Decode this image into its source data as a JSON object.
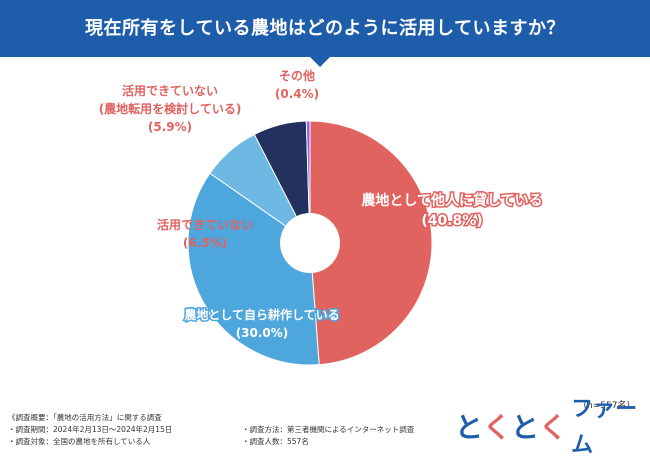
{
  "header": {
    "title": "現在所有をしている農地はどのように活用していますか？"
  },
  "chart_data": {
    "type": "pie",
    "title": "現在所有をしている農地はどのように活用していますか？",
    "donut": true,
    "slices": [
      {
        "label": "農地として他人に貸している",
        "value": 40.8,
        "value_text": "(40.8%)",
        "color": "#e06360",
        "label_color": "#e06360"
      },
      {
        "label": "農地として自ら耕作している",
        "value": 30.0,
        "value_text": "(30.0%)",
        "color": "#4ea7dc",
        "label_color": "#4ea7dc"
      },
      {
        "label": "活用できていない",
        "value": 6.5,
        "value_text": "(6.5%)",
        "color": "#6db9e3",
        "label_color": "#e06360"
      },
      {
        "label": "活用できていない\n(農地転用を検討している)",
        "value": 5.9,
        "value_text": "(5.9%)",
        "color": "#23315e",
        "label_color": "#e06360"
      },
      {
        "label": "その他",
        "value": 0.4,
        "value_text": "(0.4%)",
        "color": "#8b5cf6",
        "label_color": "#e06360"
      }
    ],
    "legend": "none"
  },
  "footer": {
    "sample": "(n=557名)",
    "survey_overview": "《調査概要：「農地の活用方法」に関する調査",
    "survey_period": "・調査期間：2024年2月13日～2024年2月15日",
    "survey_target": "・調査対象：全国の農地を所有している人",
    "survey_method": "・調査方法：第三者機関によるインターネット調査",
    "survey_count": "・調査人数：557名"
  },
  "logo": {
    "chars": [
      "と",
      "く",
      "と",
      "く"
    ],
    "chars_colors": [
      "#1e5da9",
      "#e06360",
      "#1e5da9",
      "#e06360"
    ],
    "text": "ファーム",
    "text_color": "#1e5da9"
  }
}
